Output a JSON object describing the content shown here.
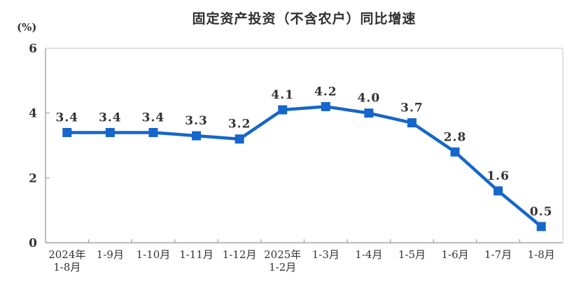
{
  "chart_data": {
    "type": "line",
    "title": "固定资产投资（不含农户）同比增速",
    "unit": "(%)",
    "categories": [
      "2024年\n1-8月",
      "1-9月",
      "1-10月",
      "1-11月",
      "1-12月",
      "2025年\n1-2月",
      "1-3月",
      "1-4月",
      "1-5月",
      "1-6月",
      "1-7月",
      "1-8月"
    ],
    "values": [
      3.4,
      3.4,
      3.4,
      3.3,
      3.2,
      4.1,
      4.2,
      4.0,
      3.7,
      2.8,
      1.6,
      0.5
    ],
    "ylim": [
      0,
      6
    ],
    "yticks": [
      0,
      2,
      4,
      6
    ],
    "grid": false,
    "legend": "none",
    "xlabel": "",
    "ylabel": "(%)",
    "marker": "square",
    "colors": {
      "line": "#1666CB",
      "marker": "#1666CB",
      "axis": "#a6a6a6",
      "border": "#d9d9d9",
      "text": "#333333"
    }
  }
}
